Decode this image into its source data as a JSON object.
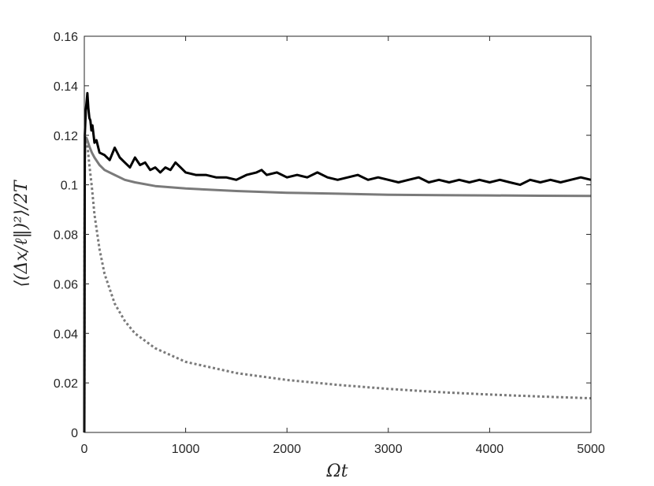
{
  "chart_data": {
    "type": "line",
    "title": "",
    "xlabel": "Ωt",
    "ylabel": "⟨(Δx/ℓ‖)²⟩/2T",
    "xlim": [
      0,
      5000
    ],
    "ylim": [
      0,
      0.16
    ],
    "x_ticks": [
      0,
      1000,
      2000,
      3000,
      4000,
      5000
    ],
    "x_tick_labels": [
      "0",
      "1000",
      "2000",
      "3000",
      "4000",
      "5000"
    ],
    "y_ticks": [
      0,
      0.02,
      0.04,
      0.06,
      0.08,
      0.1,
      0.12,
      0.14,
      0.16
    ],
    "y_tick_labels": [
      "0",
      "0.02",
      "0.04",
      "0.06",
      "0.08",
      "0.1",
      "0.12",
      "0.14",
      "0.16"
    ],
    "grid": false,
    "legend": "none",
    "series": [
      {
        "style": "solid-black",
        "color": "#000000",
        "x": [
          0,
          5,
          15,
          30,
          40,
          50,
          60,
          70,
          80,
          100,
          120,
          150,
          200,
          250,
          300,
          350,
          400,
          450,
          500,
          550,
          600,
          650,
          700,
          750,
          800,
          850,
          900,
          950,
          1000,
          1100,
          1200,
          1300,
          1400,
          1500,
          1600,
          1700,
          1750,
          1800,
          1900,
          2000,
          2100,
          2200,
          2300,
          2400,
          2500,
          2600,
          2700,
          2800,
          2900,
          3000,
          3100,
          3200,
          3300,
          3400,
          3500,
          3600,
          3700,
          3800,
          3900,
          4000,
          4100,
          4200,
          4300,
          4400,
          4500,
          4600,
          4700,
          4800,
          4900,
          5000
        ],
        "y": [
          0,
          0.12,
          0.13,
          0.137,
          0.131,
          0.127,
          0.126,
          0.122,
          0.124,
          0.117,
          0.118,
          0.113,
          0.112,
          0.11,
          0.115,
          0.111,
          0.109,
          0.107,
          0.111,
          0.108,
          0.109,
          0.106,
          0.107,
          0.105,
          0.107,
          0.106,
          0.109,
          0.107,
          0.105,
          0.104,
          0.104,
          0.103,
          0.103,
          0.102,
          0.104,
          0.105,
          0.106,
          0.104,
          0.105,
          0.103,
          0.104,
          0.103,
          0.105,
          0.103,
          0.102,
          0.103,
          0.104,
          0.102,
          0.103,
          0.102,
          0.101,
          0.102,
          0.103,
          0.101,
          0.102,
          0.101,
          0.102,
          0.101,
          0.102,
          0.101,
          0.102,
          0.101,
          0.1,
          0.102,
          0.101,
          0.102,
          0.101,
          0.102,
          0.103,
          0.102
        ]
      },
      {
        "style": "solid-gray",
        "color": "#7a7a7a",
        "x": [
          0,
          2,
          5,
          10,
          20,
          30,
          50,
          75,
          100,
          150,
          200,
          300,
          400,
          500,
          700,
          1000,
          1500,
          2000,
          2500,
          3000,
          3500,
          4000,
          4500,
          5000
        ],
        "y": [
          0,
          0.08,
          0.11,
          0.118,
          0.119,
          0.118,
          0.1155,
          0.113,
          0.111,
          0.108,
          0.106,
          0.104,
          0.102,
          0.101,
          0.0995,
          0.0985,
          0.0975,
          0.0968,
          0.0964,
          0.096,
          0.0958,
          0.0957,
          0.0956,
          0.0955
        ]
      },
      {
        "style": "dotted-gray",
        "color": "#7a7a7a",
        "x": [
          0,
          2,
          5,
          10,
          20,
          30,
          50,
          75,
          100,
          150,
          200,
          300,
          400,
          500,
          700,
          1000,
          1500,
          2000,
          2500,
          3000,
          3500,
          4000,
          4500,
          5000
        ],
        "y": [
          0,
          0.08,
          0.11,
          0.118,
          0.119,
          0.116,
          0.108,
          0.099,
          0.088,
          0.074,
          0.064,
          0.052,
          0.045,
          0.04,
          0.034,
          0.0285,
          0.024,
          0.0212,
          0.0192,
          0.0176,
          0.0163,
          0.0153,
          0.0145,
          0.0138
        ]
      }
    ]
  }
}
